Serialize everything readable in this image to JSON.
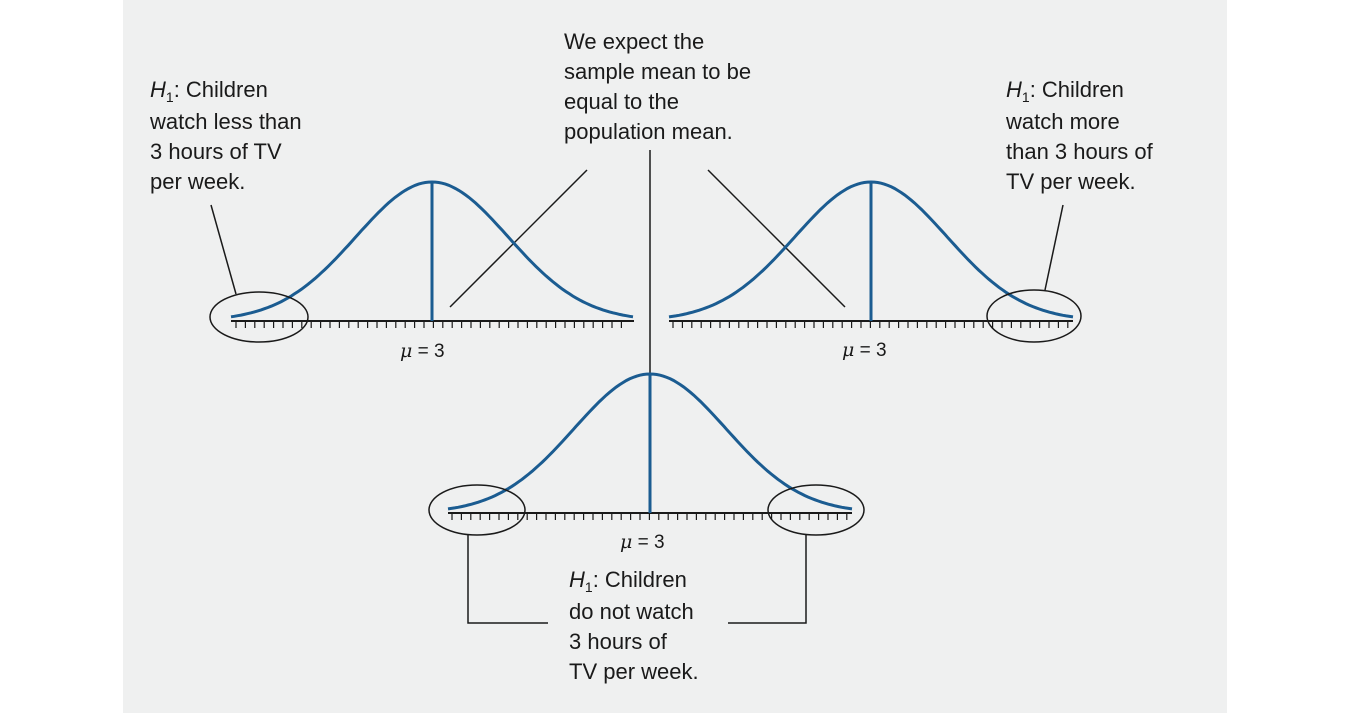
{
  "center_note": {
    "lines": [
      "We expect the",
      "sample mean to be",
      "equal to the",
      "population mean."
    ]
  },
  "left_hypothesis": {
    "symbol": "H",
    "subscript": "1",
    "lines": [
      ": Children",
      "watch less than",
      "3 hours of TV",
      "per week."
    ]
  },
  "right_hypothesis": {
    "symbol": "H",
    "subscript": "1",
    "lines": [
      ": Children",
      "watch more",
      "than 3 hours of",
      "TV per week."
    ]
  },
  "bottom_hypothesis": {
    "symbol": "H",
    "subscript": "1",
    "lines": [
      ": Children",
      "do not watch",
      "3 hours of",
      "TV per week."
    ]
  },
  "mean_labels": {
    "mu_symbol": "μ",
    "value_text": " = 3"
  },
  "colors": {
    "curve": "#1b5c91",
    "line": "#1a1a1a",
    "panel": "#eff0f0"
  }
}
